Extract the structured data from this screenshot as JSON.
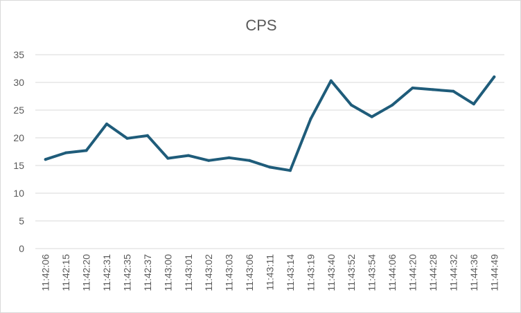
{
  "chart_data": {
    "type": "line",
    "title": "CPS",
    "xlabel": "",
    "ylabel": "",
    "ylim": [
      0,
      35
    ],
    "yticks": [
      0,
      5,
      10,
      15,
      20,
      25,
      30,
      35
    ],
    "grid": true,
    "legend": "none",
    "line_color": "#1f5c7a",
    "categories": [
      "11:42:06",
      "11:42:15",
      "11:42:20",
      "11:42:31",
      "11:42:35",
      "11:42:37",
      "11:43:00",
      "11:43:01",
      "11:43:02",
      "11:43:03",
      "11:43:06",
      "11:43:11",
      "11:43:14",
      "11:43:19",
      "11:43:40",
      "11:43:52",
      "11:43:54",
      "11:44:06",
      "11:44:20",
      "11:44:28",
      "11:44:32",
      "11:44:36",
      "11:44:49"
    ],
    "series": [
      {
        "values": [
          16.1,
          17.3,
          17.7,
          22.5,
          19.9,
          20.4,
          16.3,
          16.8,
          15.9,
          16.4,
          15.9,
          14.7,
          14.1,
          23.4,
          30.3,
          25.9,
          23.8,
          25.9,
          29.0,
          28.7,
          28.4,
          26.1,
          31.0
        ]
      }
    ]
  }
}
